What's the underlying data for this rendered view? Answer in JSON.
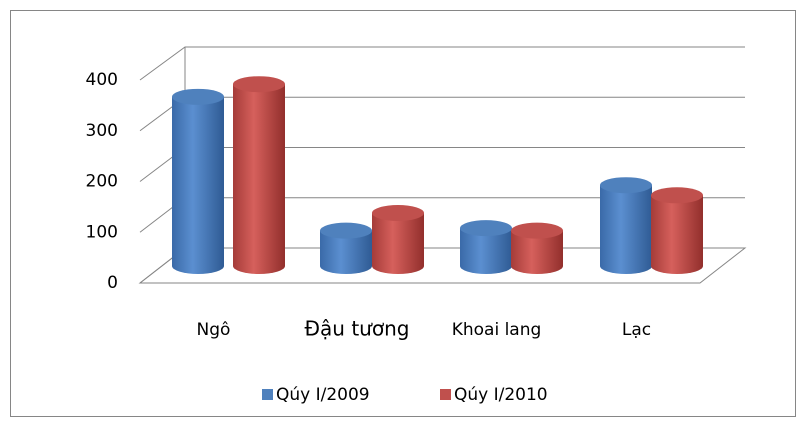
{
  "chart_data": {
    "type": "bar3d",
    "categories": [
      "Ngô",
      "Đậu tương",
      "Khoai lang",
      "Lạc"
    ],
    "series": [
      {
        "name": "Qúy I/2009",
        "color": "#4f81bd",
        "values": [
          335,
          70,
          75,
          160
        ]
      },
      {
        "name": "Qúy I/2010",
        "color": "#c0504d",
        "values": [
          360,
          105,
          70,
          140
        ]
      }
    ],
    "ylim": [
      0,
      400
    ],
    "yticks": [
      0,
      100,
      200,
      300,
      400
    ],
    "grid": true,
    "legend": "bottom"
  }
}
